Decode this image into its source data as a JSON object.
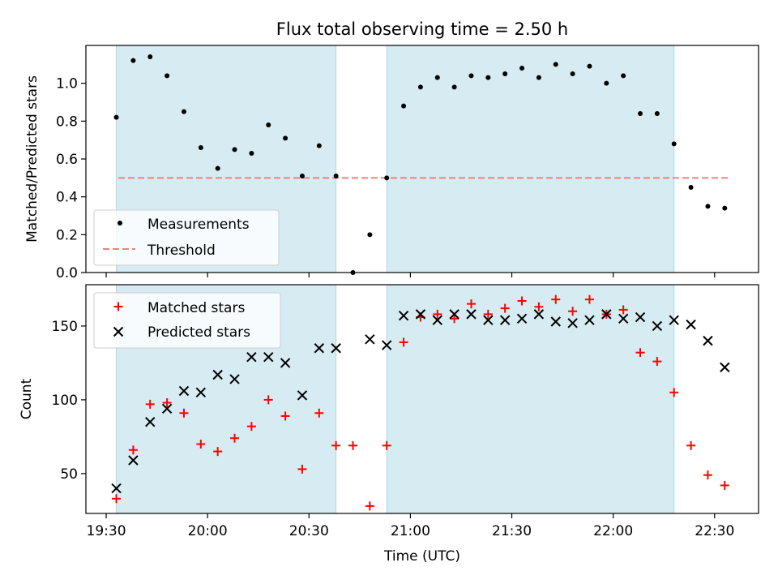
{
  "title": "Flux total observing time = 2.50 h",
  "xlabel": "Time (UTC)",
  "xticks": [
    "19:30",
    "20:00",
    "20:30",
    "21:00",
    "21:30",
    "22:00",
    "22:30"
  ],
  "colors": {
    "shade": "#add8e6",
    "threshold": "#f08080",
    "matched": "#ff0000",
    "predicted": "#000000",
    "measurement": "#000000"
  },
  "chart_data": [
    {
      "type": "scatter",
      "panel": "top",
      "ylabel": "Matched/Predicted stars",
      "ylim": [
        0,
        1.2
      ],
      "yticks": [
        "0.0",
        "0.2",
        "0.4",
        "0.6",
        "0.8",
        "1.0"
      ],
      "xlim": [
        "19:24",
        "22:43"
      ],
      "grid": false,
      "legend_position": "lower-left",
      "shaded_intervals": [
        [
          "19:33",
          "20:38"
        ],
        [
          "20:53",
          "22:18"
        ]
      ],
      "threshold": {
        "name": "Threshold",
        "value": 0.5
      },
      "series": [
        {
          "name": "Measurements",
          "x": [
            "19:33",
            "19:38",
            "19:43",
            "19:48",
            "19:53",
            "19:58",
            "20:03",
            "20:08",
            "20:13",
            "20:18",
            "20:23",
            "20:28",
            "20:33",
            "20:38",
            "20:43",
            "20:48",
            "20:53",
            "20:58",
            "21:03",
            "21:08",
            "21:13",
            "21:18",
            "21:23",
            "21:28",
            "21:33",
            "21:38",
            "21:43",
            "21:48",
            "21:53",
            "21:58",
            "22:03",
            "22:08",
            "22:13",
            "22:18",
            "22:23",
            "22:28",
            "22:33"
          ],
          "y": [
            0.82,
            1.12,
            1.14,
            1.04,
            0.85,
            0.66,
            0.55,
            0.65,
            0.63,
            0.78,
            0.71,
            0.51,
            0.67,
            0.51,
            0.0,
            0.2,
            0.5,
            0.88,
            0.98,
            1.03,
            0.98,
            1.04,
            1.03,
            1.05,
            1.08,
            1.03,
            1.1,
            1.05,
            1.09,
            1.0,
            1.04,
            0.84,
            0.84,
            0.68,
            0.45,
            0.35,
            0.34
          ]
        }
      ]
    },
    {
      "type": "scatter",
      "panel": "bottom",
      "ylabel": "Count",
      "ylim": [
        23,
        178
      ],
      "yticks": [
        "50",
        "100",
        "150"
      ],
      "xlim": [
        "19:24",
        "22:43"
      ],
      "grid": false,
      "legend_position": "upper-left",
      "shaded_intervals": [
        [
          "19:33",
          "20:38"
        ],
        [
          "20:53",
          "22:18"
        ]
      ],
      "series": [
        {
          "name": "Matched stars",
          "marker": "plus",
          "x": [
            "19:33",
            "19:38",
            "19:43",
            "19:48",
            "19:53",
            "19:58",
            "20:03",
            "20:08",
            "20:13",
            "20:18",
            "20:23",
            "20:28",
            "20:33",
            "20:38",
            "20:43",
            "20:48",
            "20:53",
            "20:58",
            "21:03",
            "21:08",
            "21:13",
            "21:18",
            "21:23",
            "21:28",
            "21:33",
            "21:38",
            "21:43",
            "21:48",
            "21:53",
            "21:58",
            "22:03",
            "22:08",
            "22:13",
            "22:18",
            "22:23",
            "22:28",
            "22:33"
          ],
          "y": [
            33,
            66,
            97,
            98,
            91,
            70,
            65,
            74,
            82,
            100,
            89,
            53,
            91,
            69,
            69,
            28,
            69,
            139,
            156,
            158,
            155,
            165,
            158,
            162,
            167,
            163,
            168,
            160,
            168,
            158,
            161,
            132,
            126,
            105,
            69,
            49,
            42
          ]
        },
        {
          "name": "Predicted stars",
          "marker": "x",
          "x": [
            "19:33",
            "19:38",
            "19:43",
            "19:48",
            "19:53",
            "19:58",
            "20:03",
            "20:08",
            "20:13",
            "20:18",
            "20:23",
            "20:28",
            "20:33",
            "20:38",
            "20:48",
            "20:53",
            "20:58",
            "21:03",
            "21:08",
            "21:13",
            "21:18",
            "21:23",
            "21:28",
            "21:33",
            "21:38",
            "21:43",
            "21:48",
            "21:53",
            "21:58",
            "22:03",
            "22:08",
            "22:13",
            "22:18",
            "22:23",
            "22:28",
            "22:33"
          ],
          "y": [
            40,
            59,
            85,
            94,
            106,
            105,
            117,
            114,
            129,
            129,
            125,
            103,
            135,
            135,
            141,
            137,
            157,
            158,
            154,
            158,
            158,
            154,
            154,
            155,
            158,
            153,
            152,
            154,
            158,
            155,
            156,
            150,
            154,
            151,
            140,
            122
          ]
        }
      ]
    }
  ]
}
